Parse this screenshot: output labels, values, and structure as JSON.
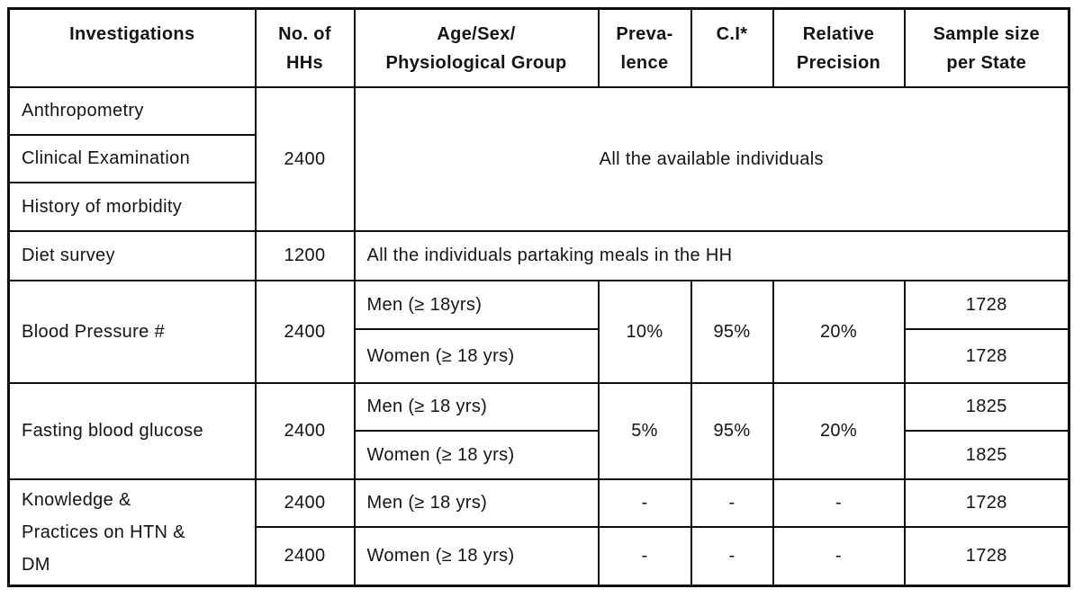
{
  "table": {
    "headers": {
      "investigations": "Investigations",
      "no_of_hhs": "No. of\nHHs",
      "age_sex_group": "Age/Sex/\nPhysiological Group",
      "prevalence": "Preva-\nlence",
      "ci": "C.I*",
      "relative_precision": "Relative\nPrecision",
      "sample_size": "Sample size\nper State"
    },
    "group1": {
      "row1_investigation": "Anthropometry",
      "row2_investigation": "Clinical Examination",
      "row3_investigation": "History of morbidity",
      "no_of_hhs": "2400",
      "group": "All the available individuals"
    },
    "diet": {
      "investigation": "Diet survey",
      "no_of_hhs": "1200",
      "group": "All the individuals partaking meals in the HH"
    },
    "blood_pressure": {
      "investigation": "Blood Pressure #",
      "no_of_hhs": "2400",
      "men_group": "Men (≥ 18yrs)",
      "women_group": "Women (≥ 18 yrs)",
      "prevalence": "10%",
      "ci": "95%",
      "relative_precision": "20%",
      "men_sample": "1728",
      "women_sample": "1728"
    },
    "fasting_glucose": {
      "investigation": "Fasting blood glucose",
      "no_of_hhs": "2400",
      "men_group": "Men (≥ 18 yrs)",
      "women_group": "Women (≥ 18 yrs)",
      "prevalence": "5%",
      "ci": "95%",
      "relative_precision": "20%",
      "men_sample": "1825",
      "women_sample": "1825"
    },
    "knowledge_practices": {
      "investigation": "Knowledge &\nPractices on HTN &\nDM",
      "men_no_of_hhs": "2400",
      "women_no_of_hhs": "2400",
      "men_group": "Men (≥ 18 yrs)",
      "women_group": "Women (≥ 18 yrs)",
      "men_prevalence": "-",
      "men_ci": "-",
      "men_relative_precision": "-",
      "men_sample": "1728",
      "women_prevalence": "-",
      "women_ci": "-",
      "women_relative_precision": "-",
      "women_sample": "1728"
    }
  }
}
